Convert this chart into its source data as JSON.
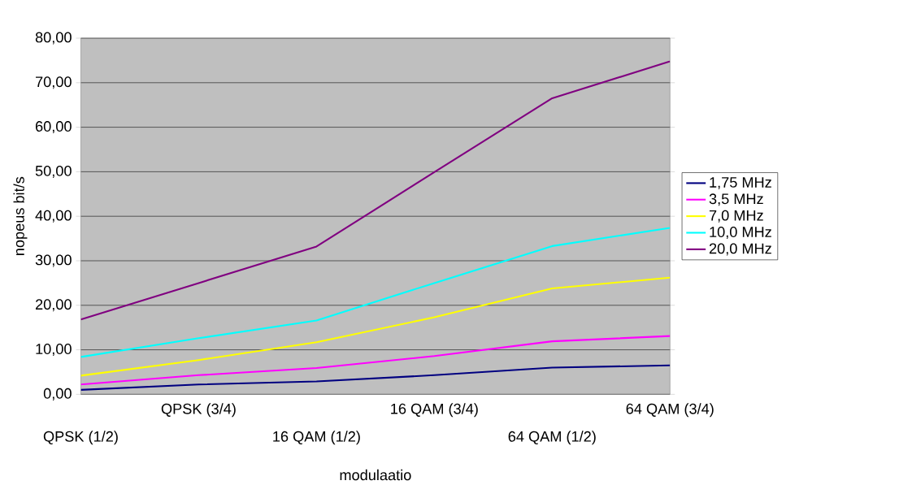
{
  "chart_data": {
    "type": "line",
    "xlabel": "modulaatio",
    "ylabel": "nopeus bit/s",
    "categories": [
      "QPSK (1/2)",
      "QPSK (3/4)",
      "16 QAM (1/2)",
      "16 QAM (3/4)",
      "64 QAM (1/2)",
      "64 QAM (3/4)"
    ],
    "series": [
      {
        "name": "1,75 MHz",
        "color": "#000080",
        "values": [
          1.0,
          2.2,
          2.9,
          4.3,
          6.0,
          6.5
        ]
      },
      {
        "name": "3,5 MHz",
        "color": "#ff00ff",
        "values": [
          2.2,
          4.3,
          5.9,
          8.6,
          11.9,
          13.1
        ]
      },
      {
        "name": "7,0 MHz",
        "color": "#ffff00",
        "values": [
          4.2,
          7.7,
          11.7,
          17.3,
          23.8,
          26.2
        ]
      },
      {
        "name": "10,0 MHz",
        "color": "#00ffff",
        "values": [
          8.4,
          12.6,
          16.6,
          25.0,
          33.3,
          37.4
        ]
      },
      {
        "name": "20,0 MHz",
        "color": "#800080",
        "values": [
          16.8,
          25.0,
          33.2,
          49.9,
          66.5,
          74.8
        ]
      }
    ],
    "ylim": [
      0,
      80
    ],
    "yticks": [
      {
        "value": 0,
        "label": "0,00"
      },
      {
        "value": 10,
        "label": "10,00"
      },
      {
        "value": 20,
        "label": "20,00"
      },
      {
        "value": 30,
        "label": "30,00"
      },
      {
        "value": 40,
        "label": "40,00"
      },
      {
        "value": 50,
        "label": "50,00"
      },
      {
        "value": 60,
        "label": "60,00"
      },
      {
        "value": 70,
        "label": "70,00"
      },
      {
        "value": 80,
        "label": "80,00"
      }
    ],
    "grid": "y",
    "legend": "right",
    "marker": "none",
    "line_style": "solid"
  }
}
